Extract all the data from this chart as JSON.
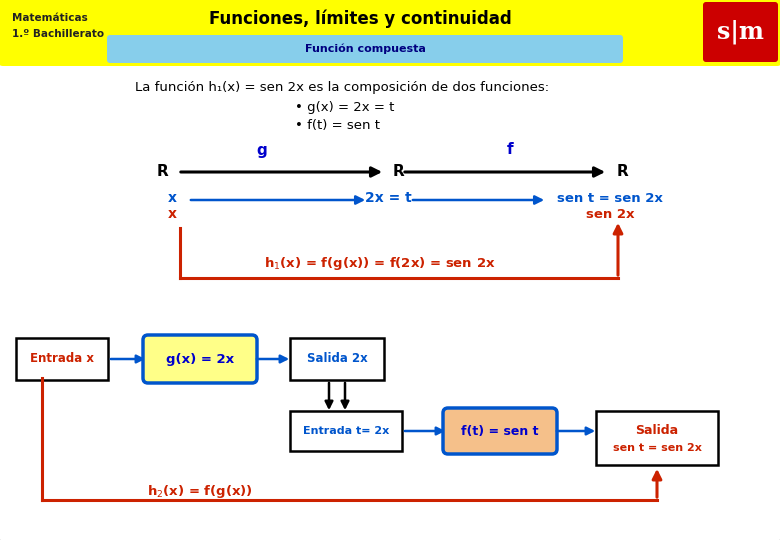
{
  "bg_color": "#ffffff",
  "header_bg": "#ffff00",
  "subtitle_bg": "#87ceeb",
  "title_text": "Funciones, límites y continuidad",
  "subtitle_text": "Función compuesta",
  "left_label1": "Matemáticas",
  "left_label2": "1.º Bachillerato",
  "body_text1": "La función h₁(x) = sen 2x es la composición de dos funciones:",
  "bullet1": "• g(x) = 2x = t",
  "bullet2": "• f(t) = sen t",
  "blue": "#0000cc",
  "dark_blue": "#000080",
  "red_col": "#cc2200",
  "blue_arrow": "#0055cc"
}
